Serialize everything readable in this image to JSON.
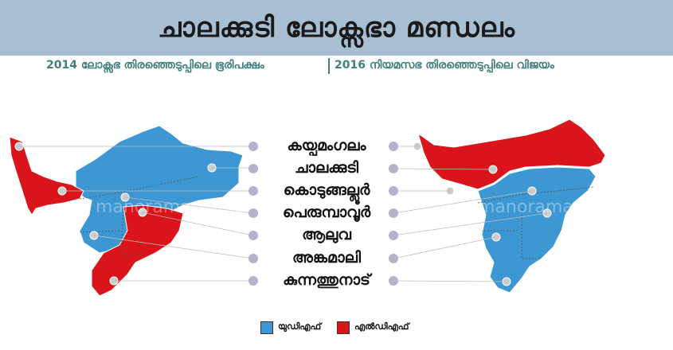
{
  "title": "ചാലക്കുടി ലോക്സഭാ മണ്ഡലം",
  "subtitle_left": "2014 ലോക്സഭ തിരഞ്ഞെടുപ്പിലെ ഭൂരിപക്ഷം",
  "subtitle_right": "2016 നിയമസഭ തിരഞ്ഞെടുപ്പിലെ വിജയം",
  "constituencies": [
    "കയ്പമംഗലം",
    "ചാലക്കുടി",
    "കൊടുങ്ങല്ലൂർ",
    "പെരുമ്പാവൂർ",
    "ആലുവ",
    "അങ്കമാലി",
    "കുന്നത്തുനാട്"
  ],
  "map_2014": [
    "LDF",
    "UDF",
    "UDF",
    "LDF",
    "UDF",
    "LDF",
    "LDF"
  ],
  "map_2016": [
    "LDF",
    "LDF",
    "UDF",
    "UDF",
    "UDF",
    "UDF",
    "UDF"
  ],
  "legend": {
    "udf_label": "യുഡിഎഫ്",
    "ldf_label": "എൽഡിഎഫ്",
    "udf_color": "#3d97d3",
    "ldf_color": "#d9141a"
  },
  "watermark": "manoramaonline"
}
